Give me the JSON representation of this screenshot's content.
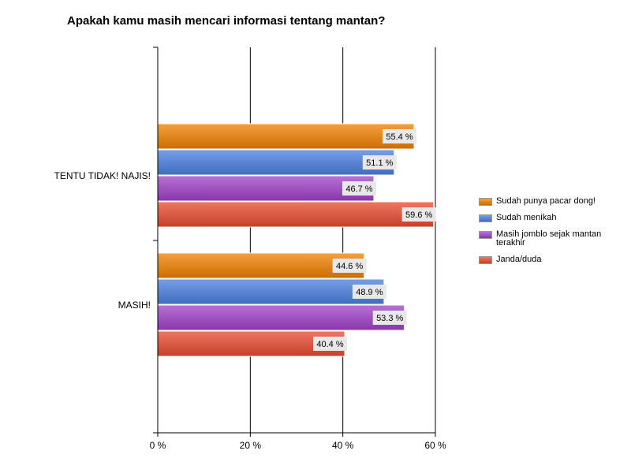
{
  "chart_data": {
    "type": "bar",
    "orientation": "horizontal",
    "title": "Apakah kamu masih mencari informasi tentang mantan?",
    "categories": [
      "TENTU TIDAK! NAJIS!",
      "MASIH!"
    ],
    "series": [
      {
        "name": "Sudah punya pacar dong!",
        "values": [
          55.4,
          44.6
        ],
        "labels": [
          "55.4 %",
          "44.6 %"
        ],
        "color": "#f08000"
      },
      {
        "name": "Sudah menikah",
        "values": [
          51.1,
          48.9
        ],
        "labels": [
          "51.1 %",
          "48.9 %"
        ],
        "color": "#4a7fe0"
      },
      {
        "name": "Masih jomblo sejak mantan terakhir",
        "values": [
          46.7,
          53.3
        ],
        "labels": [
          "46.7 %",
          "53.3 %"
        ],
        "color": "#a040c8"
      },
      {
        "name": "Janda/duda",
        "values": [
          59.6,
          40.4
        ],
        "labels": [
          "59.6 %",
          "40.4 %"
        ],
        "color": "#e84a2e"
      }
    ],
    "xlim": [
      0,
      60
    ],
    "xticks": [
      0,
      20,
      40,
      60
    ],
    "xtick_labels": [
      "0 %",
      "20 %",
      "40 %",
      "60 %"
    ],
    "grid": true,
    "legend_position": "right"
  }
}
